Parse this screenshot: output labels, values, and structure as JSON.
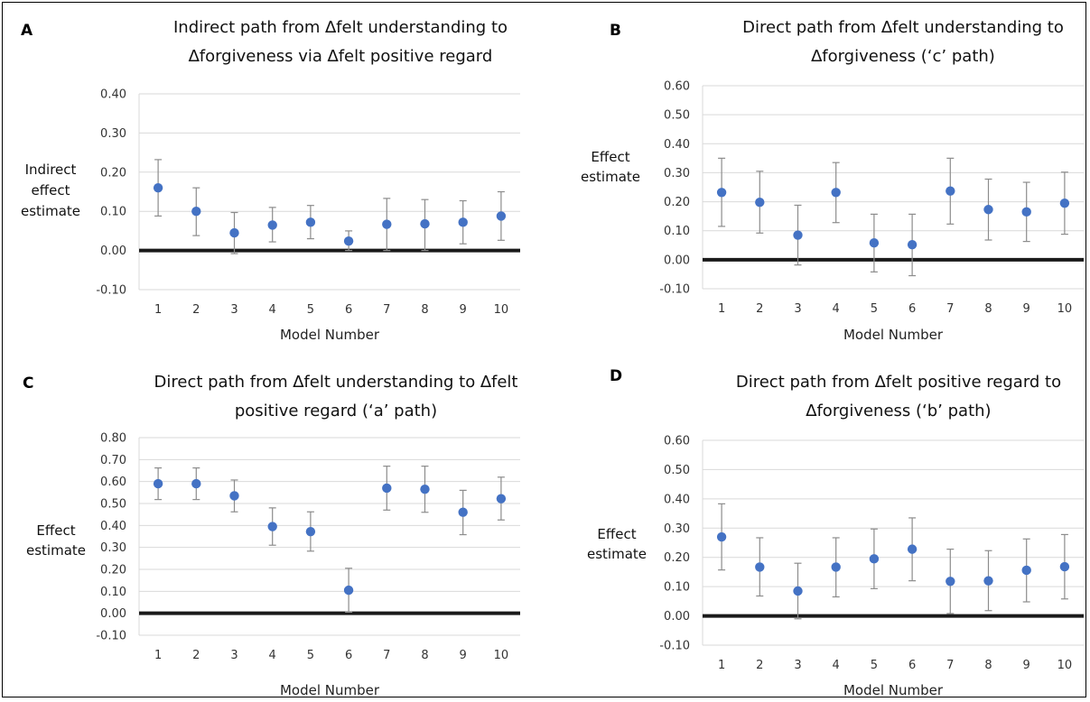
{
  "chart_data": [
    {
      "panel": "A",
      "type": "scatter",
      "title": [
        "Indirect path from ∆felt understanding to",
        "∆forgiveness via ∆felt positive regard"
      ],
      "xlabel": "Model Number",
      "ylabel": [
        "Indirect",
        "effect",
        "estimate"
      ],
      "ylim": [
        -0.1,
        0.4
      ],
      "yticks": [
        "-0.10",
        "0.00",
        "0.10",
        "0.20",
        "0.30",
        "0.40"
      ],
      "categories": [
        "1",
        "2",
        "3",
        "4",
        "5",
        "6",
        "7",
        "8",
        "9",
        "10"
      ],
      "values": [
        0.16,
        0.1,
        0.045,
        0.065,
        0.072,
        0.024,
        0.067,
        0.068,
        0.072,
        0.088
      ],
      "ci_lower": [
        0.088,
        0.038,
        -0.008,
        0.022,
        0.03,
        0.0,
        0.0,
        0.0,
        0.017,
        0.026
      ],
      "ci_upper": [
        0.232,
        0.16,
        0.097,
        0.11,
        0.115,
        0.05,
        0.133,
        0.13,
        0.127,
        0.15
      ],
      "grid": true
    },
    {
      "panel": "B",
      "type": "scatter",
      "title": [
        "Direct path from ∆felt understanding to",
        "∆forgiveness (‘c’ path)"
      ],
      "xlabel": "Model Number",
      "ylabel": [
        "Effect",
        "estimate"
      ],
      "ylim": [
        -0.1,
        0.6
      ],
      "yticks": [
        "-0.10",
        "0.00",
        "0.10",
        "0.20",
        "0.30",
        "0.40",
        "0.50",
        "0.60"
      ],
      "categories": [
        "1",
        "2",
        "3",
        "4",
        "5",
        "6",
        "7",
        "8",
        "9",
        "10"
      ],
      "values": [
        0.232,
        0.198,
        0.085,
        0.232,
        0.058,
        0.052,
        0.237,
        0.173,
        0.165,
        0.195
      ],
      "ci_lower": [
        0.115,
        0.092,
        -0.018,
        0.128,
        -0.042,
        -0.055,
        0.123,
        0.068,
        0.063,
        0.088
      ],
      "ci_upper": [
        0.35,
        0.305,
        0.188,
        0.335,
        0.157,
        0.157,
        0.35,
        0.278,
        0.267,
        0.302
      ],
      "grid": true
    },
    {
      "panel": "C",
      "type": "scatter",
      "title": [
        "Direct path from ∆felt understanding to ∆felt",
        "positive regard (‘a’ path)"
      ],
      "xlabel": "Model Number",
      "ylabel": [
        "Effect",
        "estimate"
      ],
      "ylim": [
        -0.1,
        0.8
      ],
      "yticks": [
        "-0.10",
        "0.00",
        "0.10",
        "0.20",
        "0.30",
        "0.40",
        "0.50",
        "0.60",
        "0.70",
        "0.80"
      ],
      "categories": [
        "1",
        "2",
        "3",
        "4",
        "5",
        "6",
        "7",
        "8",
        "9",
        "10"
      ],
      "values": [
        0.59,
        0.59,
        0.535,
        0.395,
        0.372,
        0.105,
        0.57,
        0.565,
        0.46,
        0.522
      ],
      "ci_lower": [
        0.518,
        0.518,
        0.462,
        0.31,
        0.283,
        0.005,
        0.47,
        0.46,
        0.358,
        0.425
      ],
      "ci_upper": [
        0.662,
        0.662,
        0.607,
        0.48,
        0.462,
        0.205,
        0.67,
        0.67,
        0.56,
        0.62
      ],
      "grid": true
    },
    {
      "panel": "D",
      "type": "scatter",
      "title": [
        "Direct path from ∆felt positive regard to",
        "∆forgiveness (‘b’ path)"
      ],
      "xlabel": "Model Number",
      "ylabel": [
        "Effect",
        "estimate"
      ],
      "ylim": [
        -0.1,
        0.6
      ],
      "yticks": [
        "-0.10",
        "0.00",
        "0.10",
        "0.20",
        "0.30",
        "0.40",
        "0.50",
        "0.60"
      ],
      "categories": [
        "1",
        "2",
        "3",
        "4",
        "5",
        "6",
        "7",
        "8",
        "9",
        "10"
      ],
      "values": [
        0.27,
        0.167,
        0.085,
        0.167,
        0.195,
        0.228,
        0.118,
        0.12,
        0.156,
        0.168
      ],
      "ci_lower": [
        0.157,
        0.068,
        -0.01,
        0.065,
        0.093,
        0.12,
        0.008,
        0.018,
        0.048,
        0.058
      ],
      "ci_upper": [
        0.383,
        0.267,
        0.18,
        0.267,
        0.297,
        0.335,
        0.228,
        0.223,
        0.263,
        0.278
      ],
      "grid": true
    }
  ],
  "colors": {
    "point": "#4472c4",
    "errorbar": "#8c8c8c",
    "gridline": "#d9d9d9",
    "zero_line": "#1a1a1a"
  }
}
